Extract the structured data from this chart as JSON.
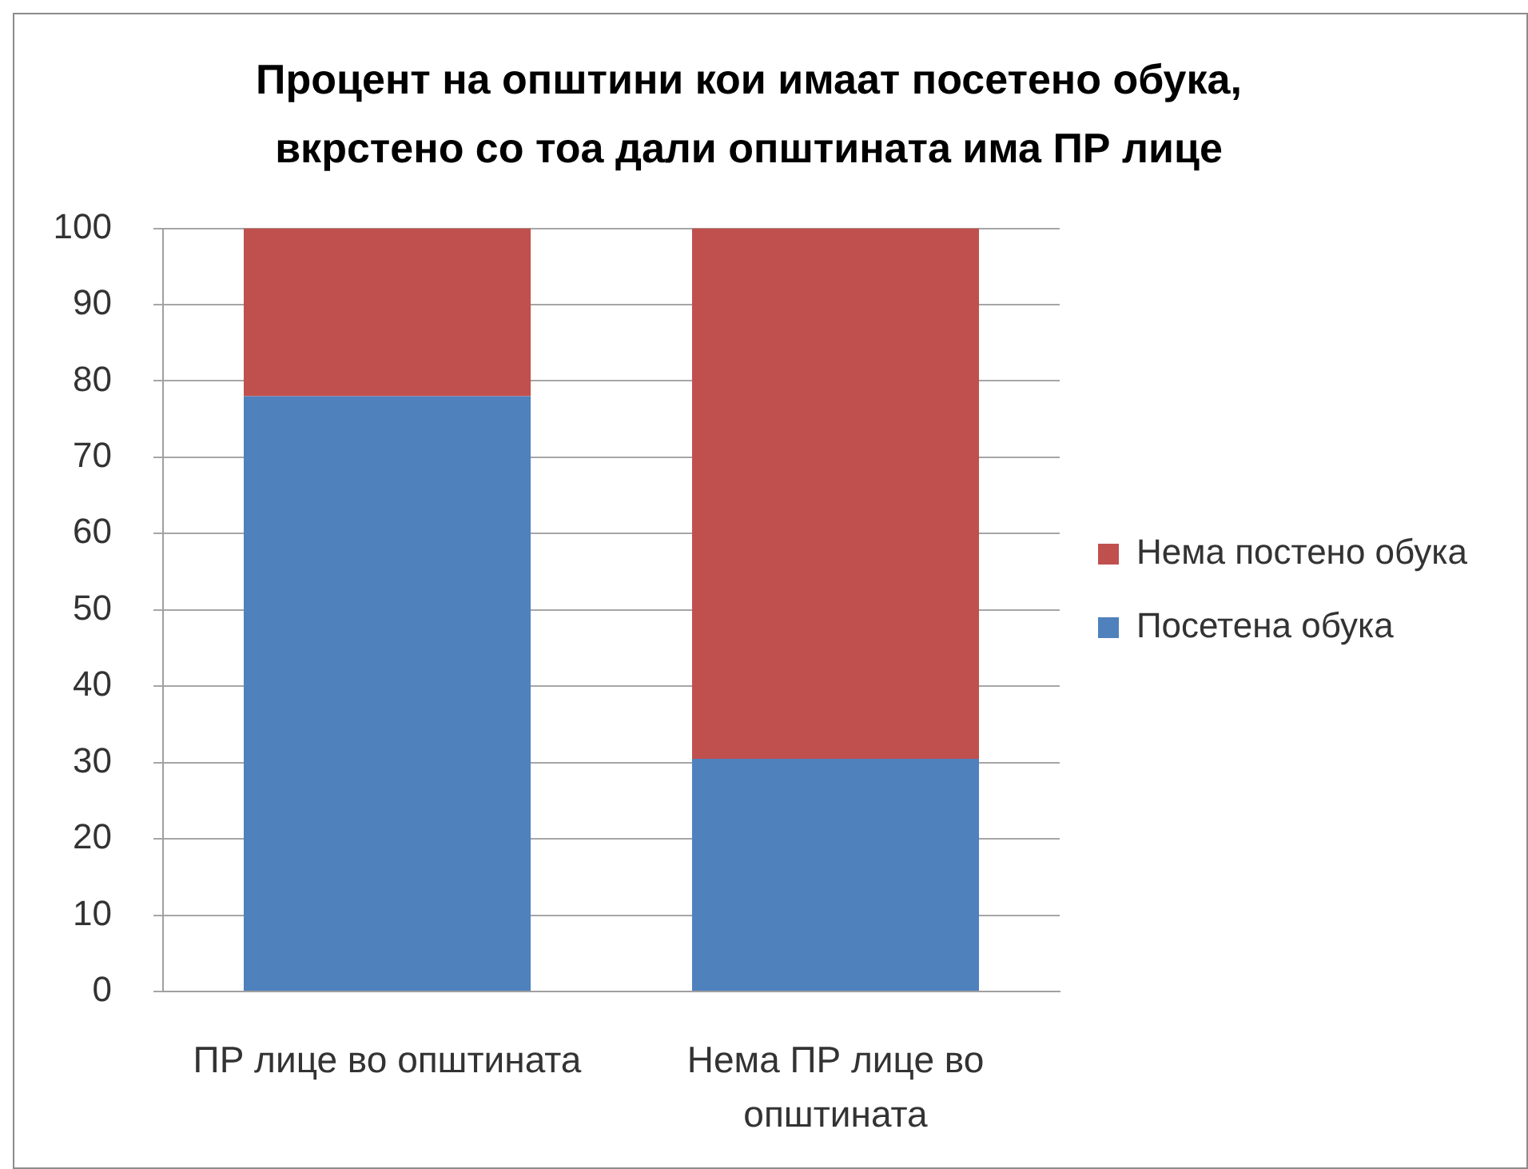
{
  "chart_data": {
    "type": "bar",
    "title": "Процент на општини кои имаат посетено обука, вкрстено со тоа дали општината има ПР лице",
    "categories": [
      "ПР лице во општината",
      "Нема ПР лице во општината"
    ],
    "series": [
      {
        "name": "Посетена обука",
        "color": "#4f81bd",
        "values": [
          78,
          30.5
        ]
      },
      {
        "name": "Нема постено обука",
        "color": "#c0504d",
        "values": [
          22,
          69.5
        ]
      }
    ],
    "stacked": true,
    "ylim": [
      0,
      100
    ],
    "yticks": [
      0,
      10,
      20,
      30,
      40,
      50,
      60,
      70,
      80,
      90,
      100
    ],
    "grid": "y",
    "legend": "right"
  }
}
